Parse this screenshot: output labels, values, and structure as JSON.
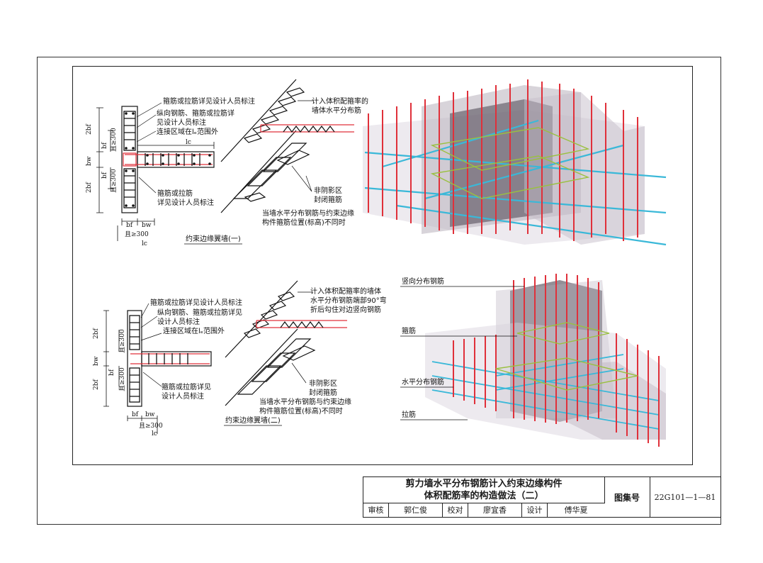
{
  "upper": {
    "note_stirrup_top": "箍筋或拉筋详见设计人员标注",
    "note_long_bars": "纵向钢筋、箍筋或拉筋详",
    "note_long_bars_2": "见设计人员标注",
    "note_splice": "连接区域在lₑ范围外",
    "note_stirrup_bottom": "箍筋或拉筋",
    "note_stirrup_bottom_2": "详见设计人员标注",
    "dim_2bf_top": "2bf",
    "dim_bf_top": "bf",
    "dim_ge300_top": "且≥300",
    "dim_bw": "bw",
    "dim_bf_bot": "bf",
    "dim_ge300_bot": "且≥300",
    "dim_2bf_bot": "2bf",
    "dim_lc_flange": "lc",
    "dim_bf_x": "bf",
    "dim_bw_x": "bw",
    "dim_ge300_x": "且≥300",
    "dim_lc_x": "lc",
    "caption": "约束边缘翼墙(一)",
    "iso_note_hoop": "计入体积配箍率的",
    "iso_note_hoop_2": "墙体水平分布筋",
    "iso_note_closed": "非阴影区",
    "iso_note_closed_2": "封闭箍筋",
    "iso_note_level": "当墙水平分布钢筋与约束边缘",
    "iso_note_level_2": "构件箍筋位置(标高)不同时"
  },
  "lower": {
    "note_stirrup_top": "箍筋或拉筋详见设计人员标注",
    "note_long_bars": "纵向钢筋、箍筋或拉筋详见",
    "note_long_bars_2": "设计人员标注",
    "note_splice": "连接区域在lₑ范围外",
    "note_stirrup_bottom": "箍筋或拉筋详见",
    "note_stirrup_bottom_2": "设计人员标注",
    "dim_2bf_top": "2bf",
    "dim_ge300_top": "且≥300",
    "dim_bw": "bw",
    "dim_bf_bot": "bf",
    "dim_ge300_bot": "且≥300",
    "dim_2bf_bot": "2bf",
    "dim_bf_x": "bf",
    "dim_bw_x": "bw",
    "dim_ge300_x": "且≥300",
    "dim_lc_x": "lc",
    "caption": "约束边缘翼墙(二)",
    "iso_note_hoop": "计入体积配箍率的墙体",
    "iso_note_hoop_2": "水平分布钢筋端部90°弯",
    "iso_note_hoop_3": "折后勾住对边竖向钢筋",
    "iso_note_closed": "非阴影区",
    "iso_note_closed_2": "封闭箍筋",
    "iso_note_level": "当墙水平分布钢筋与约束边缘",
    "iso_note_level_2": "构件箍筋位置(标高)不同时",
    "label_vertical": "竖向分布钢筋",
    "label_stirrup": "箍筋",
    "label_horizontal": "水平分布钢筋",
    "label_tie": "拉筋"
  },
  "title_block": {
    "title_line1": "剪力墙水平分布钢筋计入约束边缘构件",
    "title_line2": "体积配筋率的构造做法（二）",
    "atlas_label": "图集号",
    "atlas_number": "22G101—1—81",
    "review_label": "审核",
    "review_name": "郭仁俊",
    "check_label": "校对",
    "check_name": "廖宜香",
    "design_label": "设计",
    "design_name": "傅华夏"
  },
  "colors": {
    "rebar_red": "#e0303a",
    "rebar_cyan": "#3ab8d8",
    "stirrup_green": "#9ac040",
    "concrete": "#b8b0bc",
    "concrete_dark": "#4a4450"
  }
}
